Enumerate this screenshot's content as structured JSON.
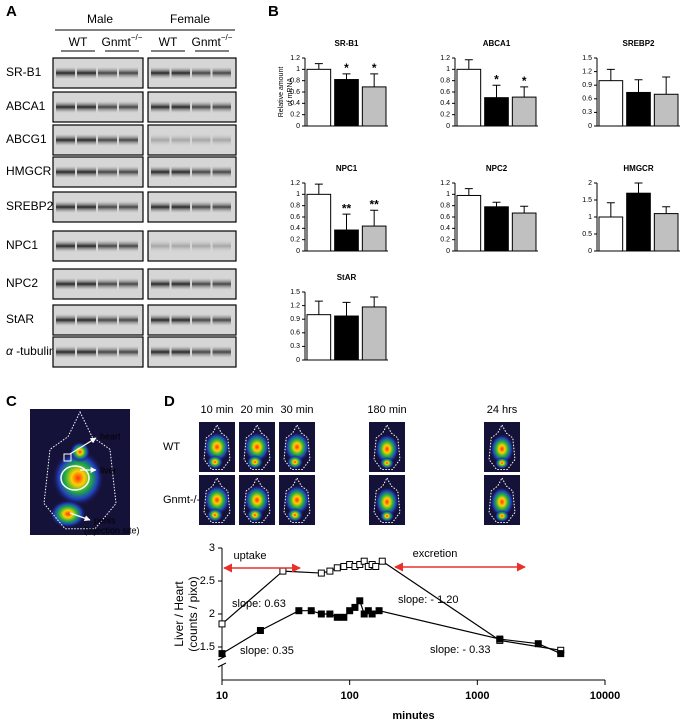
{
  "panel_labels": [
    "A",
    "B",
    "C",
    "D"
  ],
  "blot": {
    "groups": [
      "Male",
      "Female"
    ],
    "genotypes": [
      {
        "name": "WT"
      },
      {
        "name": "Gnmt",
        "superscript": "−/−"
      }
    ],
    "proteins": [
      "SR-B1",
      "ABCA1",
      "ABCG1",
      "HMGCR",
      "SREBP2",
      "NPC1",
      "NPC2",
      "StAR"
    ],
    "loading_control": {
      "symbol": "α",
      "name": " -tubulin"
    }
  },
  "biodistribution": {
    "labels": [
      "heart",
      "liver",
      "penis",
      "(injection site)"
    ]
  },
  "imaging": {
    "times": [
      "10 min",
      "20 min",
      "30 min",
      "180 min",
      "24 hrs"
    ],
    "rows": [
      "WT",
      "Gnmt-/-"
    ]
  },
  "chart_data": [
    {
      "type": "bar",
      "title": "SR-B1",
      "ylabel": [
        "Relative amount",
        "of mRNA"
      ],
      "categories": [
        null,
        null,
        null
      ],
      "values": [
        1.0,
        0.82,
        0.69
      ],
      "errors": [
        0.1,
        0.1,
        0.23
      ],
      "colors": [
        "#ffffff",
        "#000000",
        "#c0c0c0"
      ],
      "annotations": [
        null,
        "*",
        "*"
      ],
      "ylim": [
        0,
        1.2
      ],
      "yticks": [
        0,
        0.2,
        0.4,
        0.6,
        0.8,
        1,
        1.2
      ]
    },
    {
      "type": "bar",
      "title": "ABCA1",
      "categories": [
        null,
        null,
        null
      ],
      "values": [
        1.0,
        0.5,
        0.51
      ],
      "errors": [
        0.17,
        0.22,
        0.18
      ],
      "colors": [
        "#ffffff",
        "#000000",
        "#c0c0c0"
      ],
      "annotations": [
        null,
        "*",
        "*"
      ],
      "ylim": [
        0,
        1.2
      ],
      "yticks": [
        0,
        0.2,
        0.4,
        0.6,
        0.8,
        1,
        1.2
      ]
    },
    {
      "type": "bar",
      "title": "SREBP2",
      "categories": [
        null,
        null,
        null
      ],
      "values": [
        1.0,
        0.74,
        0.7
      ],
      "errors": [
        0.25,
        0.28,
        0.38
      ],
      "colors": [
        "#ffffff",
        "#000000",
        "#c0c0c0"
      ],
      "ylim": [
        0,
        1.5
      ],
      "yticks": [
        0,
        0.3,
        0.6,
        0.9,
        1.2,
        1.5
      ]
    },
    {
      "type": "bar",
      "title": "NPC1",
      "categories": [
        null,
        null,
        null
      ],
      "values": [
        1.0,
        0.37,
        0.44
      ],
      "errors": [
        0.18,
        0.28,
        0.28
      ],
      "colors": [
        "#ffffff",
        "#000000",
        "#c0c0c0"
      ],
      "annotations": [
        null,
        "**",
        "**"
      ],
      "ylim": [
        0,
        1.2
      ],
      "yticks": [
        0,
        0.2,
        0.4,
        0.6,
        0.8,
        1,
        1.2
      ]
    },
    {
      "type": "bar",
      "title": "NPC2",
      "categories": [
        null,
        null,
        null
      ],
      "values": [
        0.98,
        0.78,
        0.67
      ],
      "errors": [
        0.12,
        0.08,
        0.12
      ],
      "colors": [
        "#ffffff",
        "#000000",
        "#c0c0c0"
      ],
      "ylim": [
        0,
        1.2
      ],
      "yticks": [
        0,
        0.2,
        0.4,
        0.6,
        0.8,
        1,
        1.2
      ]
    },
    {
      "type": "bar",
      "title": "HMGCR",
      "categories": [
        null,
        null,
        null
      ],
      "values": [
        1.0,
        1.7,
        1.1
      ],
      "errors": [
        0.42,
        0.3,
        0.2
      ],
      "colors": [
        "#ffffff",
        "#000000",
        "#c0c0c0"
      ],
      "ylim": [
        0,
        2
      ],
      "yticks": [
        0,
        0.5,
        1,
        1.5,
        2
      ]
    },
    {
      "type": "bar",
      "title": "StAR",
      "categories": [
        null,
        null,
        null
      ],
      "values": [
        1.0,
        0.97,
        1.17
      ],
      "errors": [
        0.3,
        0.3,
        0.22
      ],
      "colors": [
        "#ffffff",
        "#000000",
        "#c0c0c0"
      ],
      "ylim": [
        0,
        1.5
      ],
      "yticks": [
        0,
        0.3,
        0.6,
        0.9,
        1.2,
        1.5
      ]
    },
    {
      "type": "line",
      "xlabel": "minutes",
      "ylabel": [
        "Liver / Heart",
        "(counts / pixo)"
      ],
      "xscale": "log",
      "xlim": [
        10,
        10000
      ],
      "xticks": [
        10,
        100,
        1000,
        10000
      ],
      "ylim": [
        1,
        3
      ],
      "yticks": [
        1.5,
        2,
        2.5,
        3
      ],
      "series": [
        {
          "color": "#000000",
          "marker": "open",
          "x": [
            10,
            30,
            60,
            70,
            80,
            90,
            100,
            110,
            120,
            130,
            140,
            150,
            160,
            180,
            1500,
            4500
          ],
          "values": [
            1.85,
            2.65,
            2.62,
            2.65,
            2.7,
            2.72,
            2.75,
            2.72,
            2.75,
            2.8,
            2.72,
            2.75,
            2.72,
            2.8,
            1.6,
            1.45
          ]
        },
        {
          "color": "#000000",
          "marker": "filled",
          "x": [
            10,
            20,
            40,
            50,
            60,
            70,
            80,
            90,
            100,
            110,
            120,
            130,
            140,
            150,
            170,
            1500,
            3000,
            4500
          ],
          "values": [
            1.4,
            1.75,
            2.05,
            2.05,
            2.0,
            2.0,
            1.95,
            1.95,
            2.05,
            2.1,
            2.2,
            2.0,
            2.05,
            2.0,
            2.05,
            1.62,
            1.55,
            1.4
          ]
        }
      ],
      "annotations": [
        {
          "text": "uptake",
          "color": "#e8312a"
        },
        {
          "text": "excretion",
          "color": "#e8312a"
        },
        {
          "text": "slope: 0.63"
        },
        {
          "text": "slope: 0.35"
        },
        {
          "text": "slope: - 1.20"
        },
        {
          "text": "slope: - 0.33"
        }
      ]
    }
  ]
}
